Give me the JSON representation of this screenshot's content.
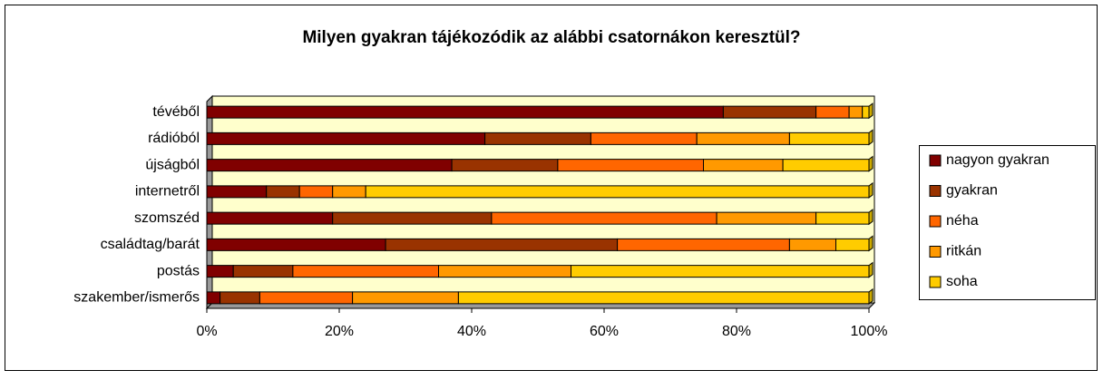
{
  "chart_data": {
    "type": "stacked_bar_horizontal",
    "title": "Milyen gyakran tájékozódik az alábbi csatornákon keresztül?",
    "categories": [
      "tévéből",
      "rádióból",
      "újságból",
      "internetről",
      "szomszéd",
      "családtag/barát",
      "postás",
      "szakember/ismerős"
    ],
    "series": [
      {
        "name": "nagyon gyakran",
        "color": "#800000",
        "values": [
          78,
          42,
          37,
          9,
          19,
          27,
          4,
          2
        ]
      },
      {
        "name": "gyakran",
        "color": "#993300",
        "values": [
          14,
          16,
          16,
          5,
          24,
          35,
          9,
          6
        ]
      },
      {
        "name": "néha",
        "color": "#ff6600",
        "values": [
          5,
          16,
          22,
          5,
          34,
          26,
          22,
          14
        ]
      },
      {
        "name": "ritkán",
        "color": "#ff9900",
        "values": [
          2,
          14,
          12,
          5,
          15,
          7,
          20,
          16
        ]
      },
      {
        "name": "soha",
        "color": "#ffcc00",
        "values": [
          1,
          12,
          13,
          76,
          8,
          5,
          45,
          62
        ]
      }
    ],
    "xlim": [
      0,
      100
    ],
    "xticks": [
      {
        "value": 0,
        "label": "0%"
      },
      {
        "value": 20,
        "label": "20%"
      },
      {
        "value": 40,
        "label": "40%"
      },
      {
        "value": 60,
        "label": "60%"
      },
      {
        "value": 80,
        "label": "80%"
      },
      {
        "value": 100,
        "label": "100%"
      }
    ],
    "grid": false,
    "legend": "right",
    "plot_background": "#ffffcc"
  }
}
